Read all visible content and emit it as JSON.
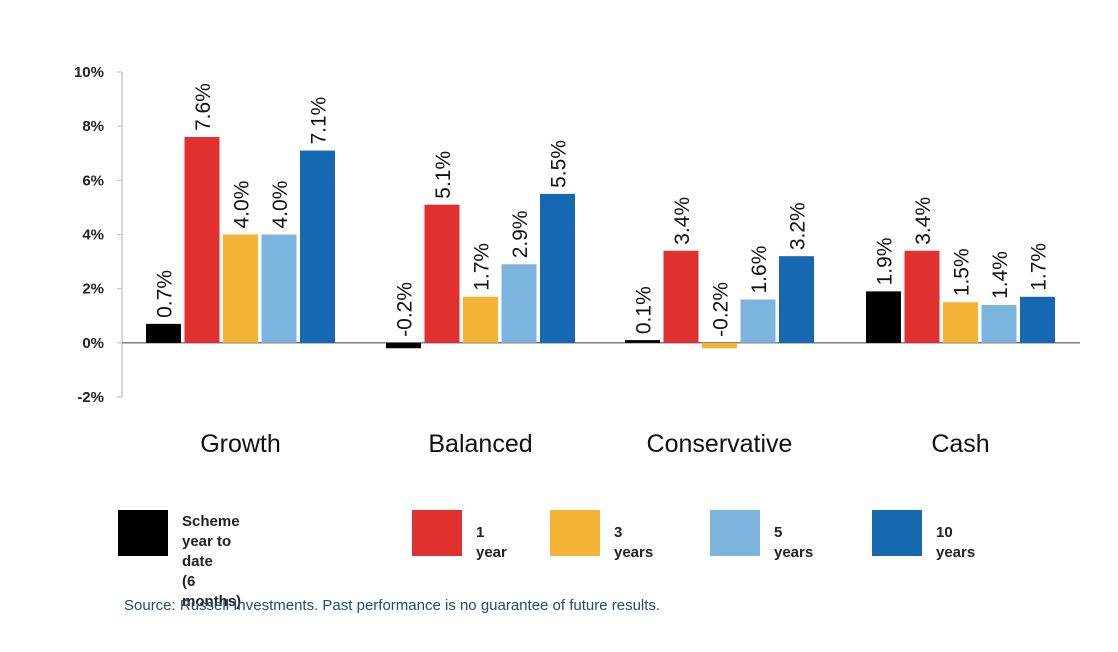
{
  "chart_data": {
    "type": "bar",
    "categories": [
      "Growth",
      "Balanced",
      "Conservative",
      "Cash"
    ],
    "ylim": [
      -2,
      10
    ],
    "yticks": [
      "10%",
      "8%",
      "6%",
      "4%",
      "2%",
      "0%",
      "-2%"
    ],
    "ytick_values": [
      10,
      8,
      6,
      4,
      2,
      0,
      -2
    ],
    "series": [
      {
        "name": "Scheme year to date\n(6 months)",
        "color": "#000000",
        "values": [
          0.7,
          -0.2,
          0.1,
          1.9
        ],
        "labels": [
          "0.7%",
          "-0.2%",
          "0.1%",
          "1.9%"
        ]
      },
      {
        "name": "1 year",
        "color": "#e03030",
        "values": [
          7.6,
          5.1,
          3.4,
          3.4
        ],
        "labels": [
          "7.6%",
          "5.1%",
          "3.4%",
          "3.4%"
        ]
      },
      {
        "name": "3 years",
        "color": "#f5b335",
        "values": [
          4.0,
          1.7,
          -0.2,
          1.5
        ],
        "labels": [
          "4.0%",
          "1.7%",
          "-0.2%",
          "1.5%"
        ]
      },
      {
        "name": "5 years",
        "color": "#7db4de",
        "values": [
          4.0,
          2.9,
          1.6,
          1.4
        ],
        "labels": [
          "4.0%",
          "2.9%",
          "1.6%",
          "1.4%"
        ]
      },
      {
        "name": "10 years",
        "color": "#1668b0",
        "values": [
          7.1,
          5.5,
          3.2,
          1.7
        ],
        "labels": [
          "7.1%",
          "5.5%",
          "3.2%",
          "1.7%"
        ]
      }
    ],
    "legend_position": "bottom",
    "grid": false
  },
  "source_note": "Source: Russell Investments. Past performance is no guarantee of future results."
}
